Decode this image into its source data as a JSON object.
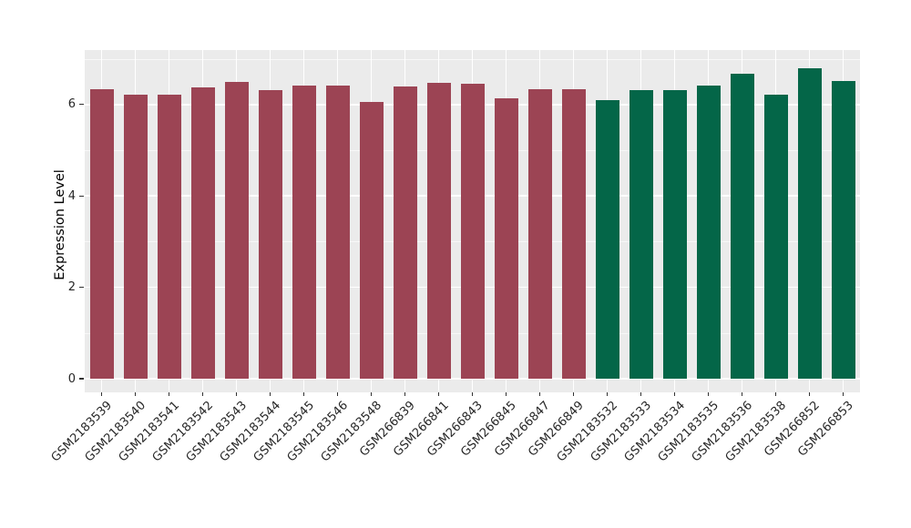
{
  "figure": {
    "background_color": "#FFFFFF",
    "panel_background_color": "#EBEBEB",
    "gridline_color": "#FFFFFF",
    "tick_color": "#333333",
    "text_color": "#262626",
    "group_colors": {
      "group_1": "#9C4454",
      "group_2": "#046648"
    }
  },
  "chart_data": {
    "type": "bar",
    "title": "",
    "xlabel": "",
    "ylabel": "Expression Level",
    "ylim": [
      0,
      7.2
    ],
    "yticks": [
      0,
      2,
      4,
      6
    ],
    "yticks_minor": [
      1,
      3,
      5,
      7
    ],
    "grid": "on",
    "legend_position": "none",
    "x_tick_rotation_deg": 45,
    "categories": [
      "GSM2183539",
      "GSM2183540",
      "GSM2183541",
      "GSM2183542",
      "GSM2183543",
      "GSM2183544",
      "GSM2183545",
      "GSM2183546",
      "GSM2183548",
      "GSM266839",
      "GSM266841",
      "GSM266843",
      "GSM266845",
      "GSM266847",
      "GSM266849",
      "GSM2183532",
      "GSM2183533",
      "GSM2183534",
      "GSM2183535",
      "GSM2183536",
      "GSM2183538",
      "GSM266852",
      "GSM266853"
    ],
    "values": [
      6.33,
      6.22,
      6.22,
      6.37,
      6.5,
      6.32,
      6.41,
      6.42,
      6.05,
      6.4,
      6.47,
      6.45,
      6.13,
      6.34,
      6.34,
      6.1,
      6.32,
      6.31,
      6.41,
      6.67,
      6.22,
      6.8,
      6.51
    ],
    "bar_colors": [
      "#9C4454",
      "#9C4454",
      "#9C4454",
      "#9C4454",
      "#9C4454",
      "#9C4454",
      "#9C4454",
      "#9C4454",
      "#9C4454",
      "#9C4454",
      "#9C4454",
      "#9C4454",
      "#9C4454",
      "#9C4454",
      "#9C4454",
      "#046648",
      "#046648",
      "#046648",
      "#046648",
      "#046648",
      "#046648",
      "#046648",
      "#046648"
    ]
  }
}
